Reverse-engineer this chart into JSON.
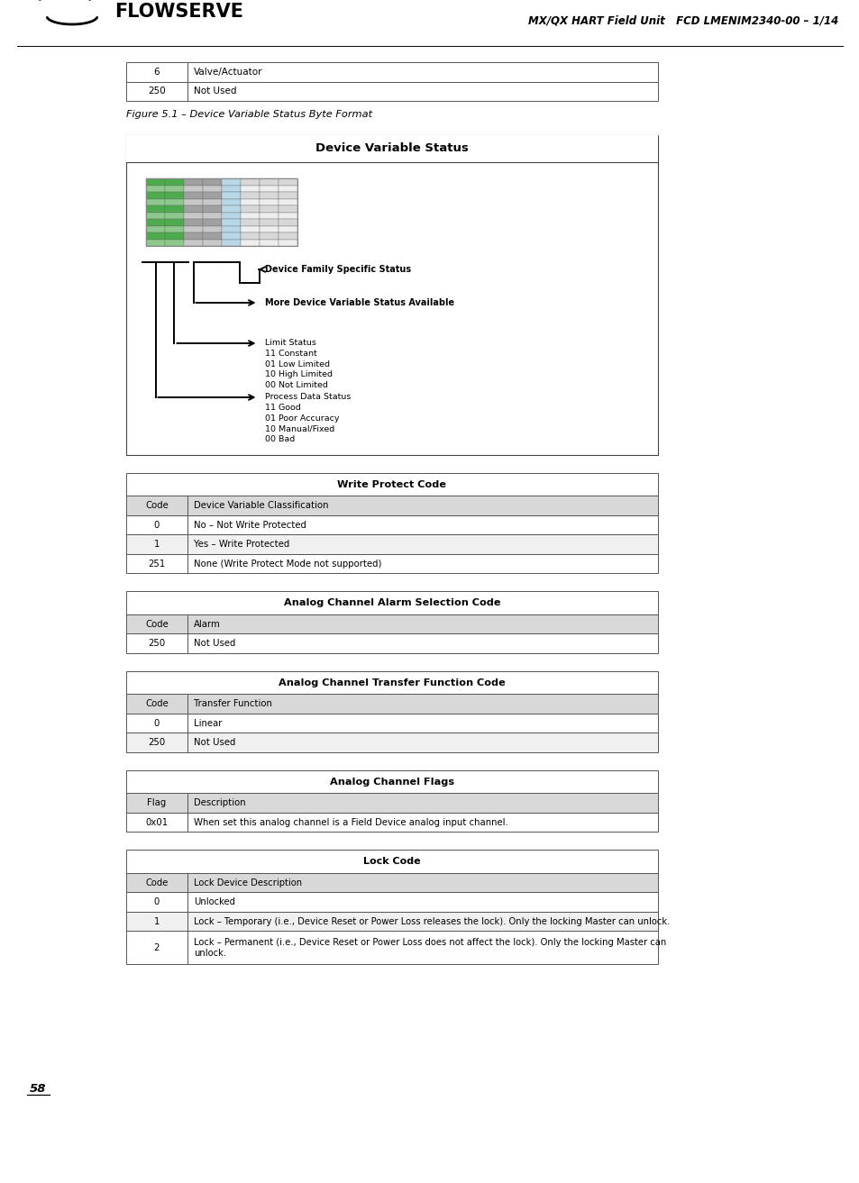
{
  "header_text": "MX/QX HART Field Unit   FCD LMENIM2340-00 – 1/14",
  "page_number": "58",
  "figure_caption": "Figure 5.1 – Device Variable Status Byte Format",
  "figure_title": "Device Variable Status",
  "top_table": {
    "rows": [
      [
        "6",
        "Valve/Actuator"
      ],
      [
        "250",
        "Not Used"
      ]
    ]
  },
  "write_protect_table": {
    "title": "Write Protect Code",
    "header": [
      "Code",
      "Device Variable Classification"
    ],
    "rows": [
      [
        "0",
        "No – Not Write Protected"
      ],
      [
        "1",
        "Yes – Write Protected"
      ],
      [
        "251",
        "None (Write Protect Mode not supported)"
      ]
    ]
  },
  "alarm_table": {
    "title": "Analog Channel Alarm Selection Code",
    "header": [
      "Code",
      "Alarm"
    ],
    "rows": [
      [
        "250",
        "Not Used"
      ]
    ]
  },
  "transfer_table": {
    "title": "Analog Channel Transfer Function Code",
    "header": [
      "Code",
      "Transfer Function"
    ],
    "rows": [
      [
        "0",
        "Linear"
      ],
      [
        "250",
        "Not Used"
      ]
    ]
  },
  "flags_table": {
    "title": "Analog Channel Flags",
    "header": [
      "Flag",
      "Description"
    ],
    "rows": [
      [
        "0x01",
        "When set this analog channel is a Field Device analog input channel."
      ]
    ]
  },
  "lock_table": {
    "title": "Lock Code",
    "header": [
      "Code",
      "Lock Device Description"
    ],
    "rows": [
      [
        "0",
        "Unlocked"
      ],
      [
        "1",
        "Lock – Temporary (i.e., Device Reset or Power Loss releases the lock). Only the locking Master can unlock."
      ],
      [
        "2",
        "Lock – Permanent (i.e., Device Reset or Power Loss does not affect the lock). Only the locking Master can\nunlock."
      ]
    ]
  },
  "diagram_annotations": [
    "Device Family Specific Status",
    "More Device Variable Status Available",
    "Limit Status\n11 Constant\n01 Low Limited\n10 High Limited\n00 Not Limited",
    "Process Data Status\n11 Good\n01 Poor Accuracy\n10 Manual/Fixed\n00 Bad"
  ]
}
